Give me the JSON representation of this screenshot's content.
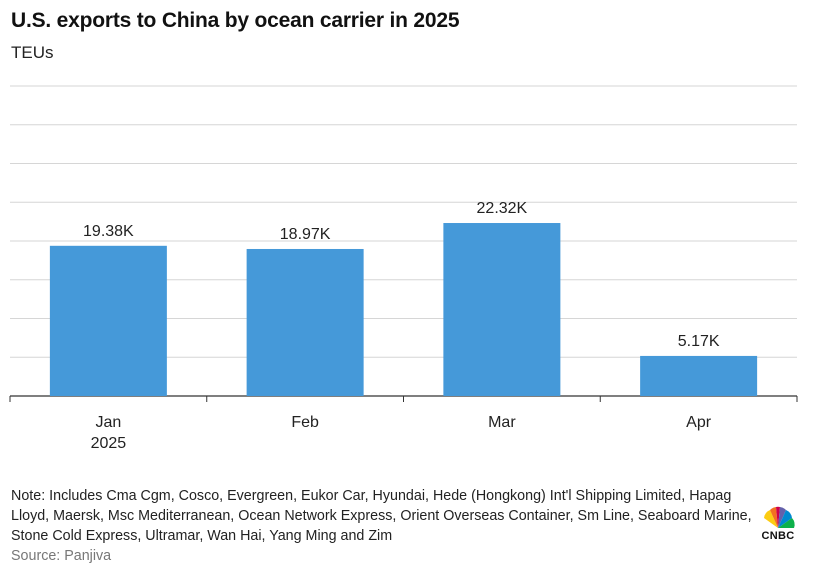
{
  "header": {
    "title": "U.S. exports to China by ocean carrier in 2025",
    "subtitle": "TEUs"
  },
  "chart_data": {
    "type": "bar",
    "categories": [
      "Jan\n2025",
      "Feb",
      "Mar",
      "Apr"
    ],
    "values": [
      19.38,
      18.97,
      22.32,
      5.17
    ],
    "value_labels": [
      "19.38K",
      "18.97K",
      "22.32K",
      "5.17K"
    ],
    "unit": "TEUs",
    "ylim": [
      0,
      40
    ],
    "grid": true,
    "legend": "none",
    "bar_color": "#4599d9"
  },
  "footer": {
    "note": "Note: Includes Cma Cgm, Cosco, Evergreen, Eukor Car, Hyundai, Hede (Hongkong) Int'l Shipping Limited, Hapag Lloyd, Maersk, Msc Mediterranean, Ocean Network Express, Orient Overseas Container, Sm Line, Seaboard Marine, Stone Cold Express, Ultramar, Wan Hai, Yang Ming and Zim",
    "source": "Source: Panjiva",
    "logo_text": "CNBC"
  }
}
